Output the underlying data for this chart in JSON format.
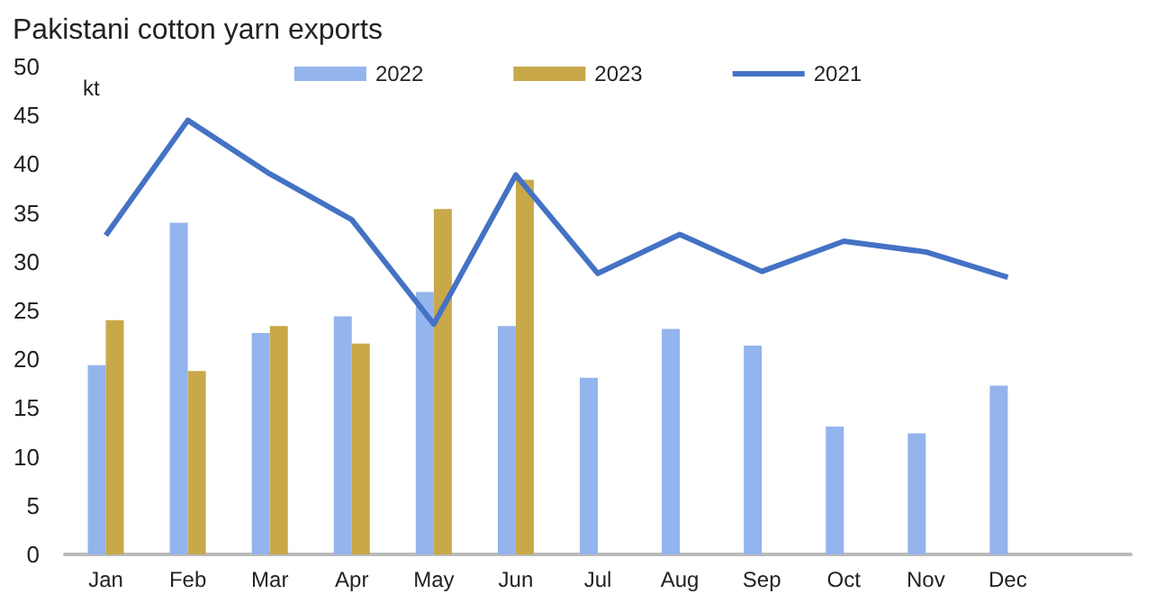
{
  "chart_data": {
    "type": "bar",
    "title": "Pakistani cotton yarn exports",
    "ylabel": "kt",
    "categories": [
      "Jan",
      "Feb",
      "Mar",
      "Apr",
      "May",
      "Jun",
      "Jul",
      "Aug",
      "Sep",
      "Oct",
      "Nov",
      "Dec",
      null
    ],
    "series": [
      {
        "name": "2022",
        "color": "#93b4ec",
        "values": [
          19.4,
          34.0,
          22.7,
          24.4,
          26.9,
          23.4,
          18.1,
          23.1,
          21.4,
          13.1,
          12.4,
          17.3,
          null
        ]
      },
      {
        "name": "2023",
        "color": "#c8a848",
        "values": [
          24.0,
          18.8,
          23.4,
          21.6,
          35.4,
          38.4,
          null,
          null,
          null,
          null,
          null,
          null,
          null
        ]
      },
      {
        "name": "2021",
        "type": "line",
        "color": "#4472c4",
        "values": [
          32.7,
          44.5,
          39.0,
          34.3,
          23.6,
          38.9,
          28.8,
          32.8,
          29.0,
          32.1,
          31.0,
          28.4,
          null
        ]
      }
    ],
    "ylim": [
      0,
      50
    ],
    "yticks": [
      0,
      5,
      10,
      15,
      20,
      25,
      30,
      35,
      40,
      45,
      50
    ],
    "grid": false,
    "legend": "top",
    "marker": "none"
  }
}
